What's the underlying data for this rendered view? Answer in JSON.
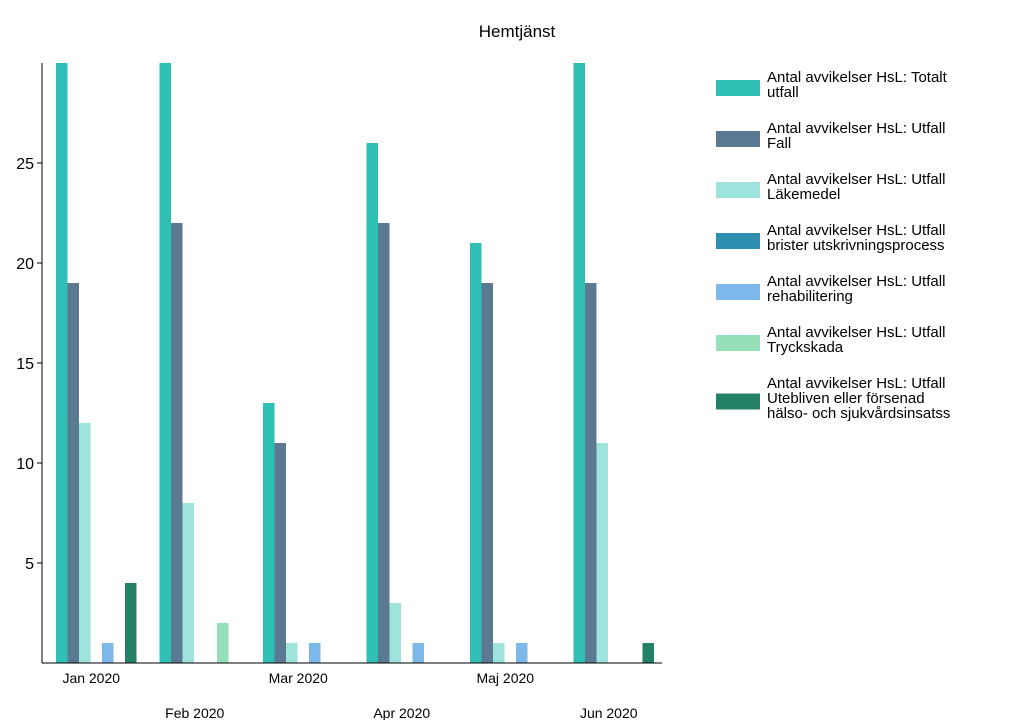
{
  "chart_data": {
    "type": "bar",
    "title": "Hemtjänst",
    "xlabel": "",
    "ylabel": "",
    "ylim": [
      0,
      30
    ],
    "yticks": [
      5,
      10,
      15,
      20,
      25
    ],
    "grid": false,
    "legend_position": "right",
    "categories": [
      "Jan 2020",
      "Feb 2020",
      "Mar 2020",
      "Apr 2020",
      "Maj 2020",
      "Jun 2020"
    ],
    "series": [
      {
        "name": "Antal avvikelser HsL: Totalt utfall",
        "label_lines": [
          "Antal avvikelser HsL: Totalt",
          "utfall"
        ],
        "color": "#2fbfb5",
        "values": [
          30,
          30,
          13,
          26,
          21,
          30
        ]
      },
      {
        "name": "Antal avvikelser HsL: Utfall Fall",
        "label_lines": [
          "Antal avvikelser HsL: Utfall",
          "Fall"
        ],
        "color": "#5b7a92",
        "values": [
          19,
          22,
          11,
          22,
          19,
          19
        ]
      },
      {
        "name": "Antal avvikelser HsL: Utfall Läkemedel",
        "label_lines": [
          "Antal avvikelser HsL: Utfall",
          "Läkemedel"
        ],
        "color": "#9ee3dc",
        "values": [
          12,
          8,
          1,
          3,
          1,
          11
        ]
      },
      {
        "name": "Antal avvikelser HsL: Utfall brister utskrivningsprocess",
        "label_lines": [
          "Antal avvikelser HsL: Utfall",
          "brister utskrivningsprocess"
        ],
        "color": "#2e8fb0",
        "values": [
          0,
          0,
          0,
          0,
          0,
          0
        ]
      },
      {
        "name": "Antal avvikelser HsL: Utfall rehabilitering",
        "label_lines": [
          "Antal avvikelser HsL: Utfall",
          "rehabilitering"
        ],
        "color": "#7cb9ea",
        "values": [
          1,
          0,
          1,
          1,
          1,
          0
        ]
      },
      {
        "name": "Antal avvikelser HsL: Utfall Tryckskada",
        "label_lines": [
          "Antal avvikelser HsL: Utfall",
          "Tryckskada"
        ],
        "color": "#95e0b9",
        "values": [
          0,
          2,
          0,
          0,
          0,
          0
        ]
      },
      {
        "name": "Antal avvikelser HsL: Utfall Utebliven eller  försenad hälso- och sjukvårdsinsatss",
        "label_lines": [
          "Antal avvikelser HsL: Utfall",
          "Utebliven eller  försenad",
          "hälso- och sjukvårdsinsatss"
        ],
        "color": "#258068",
        "values": [
          4,
          0,
          0,
          0,
          0,
          1
        ]
      }
    ]
  }
}
